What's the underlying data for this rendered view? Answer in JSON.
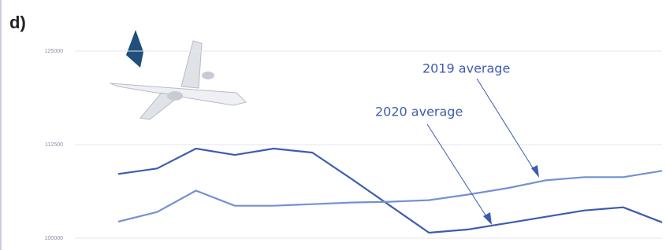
{
  "chart_data": {
    "type": "line",
    "title": "d)",
    "categories": [
      null,
      null,
      null,
      null,
      null,
      null,
      null,
      null,
      null,
      null,
      null,
      null,
      null,
      null,
      null
    ],
    "series": [
      {
        "name": "2020 average",
        "color": "#3d5cb0",
        "values": [
          108580,
          109320,
          111970,
          111120,
          111970,
          111440,
          107940,
          104340,
          100740,
          101170,
          102010,
          102860,
          103710,
          104130,
          102120
        ]
      },
      {
        "name": "2019 average",
        "color": "#7590d2",
        "values": [
          102220,
          103500,
          106360,
          104340,
          104340,
          104550,
          104770,
          104870,
          105080,
          105830,
          106670,
          107730,
          108160,
          108160,
          109000
        ]
      }
    ],
    "ylim": [
      100000,
      125000
    ],
    "yticks": [
      100000,
      112500,
      125000
    ],
    "grid": true
  }
}
